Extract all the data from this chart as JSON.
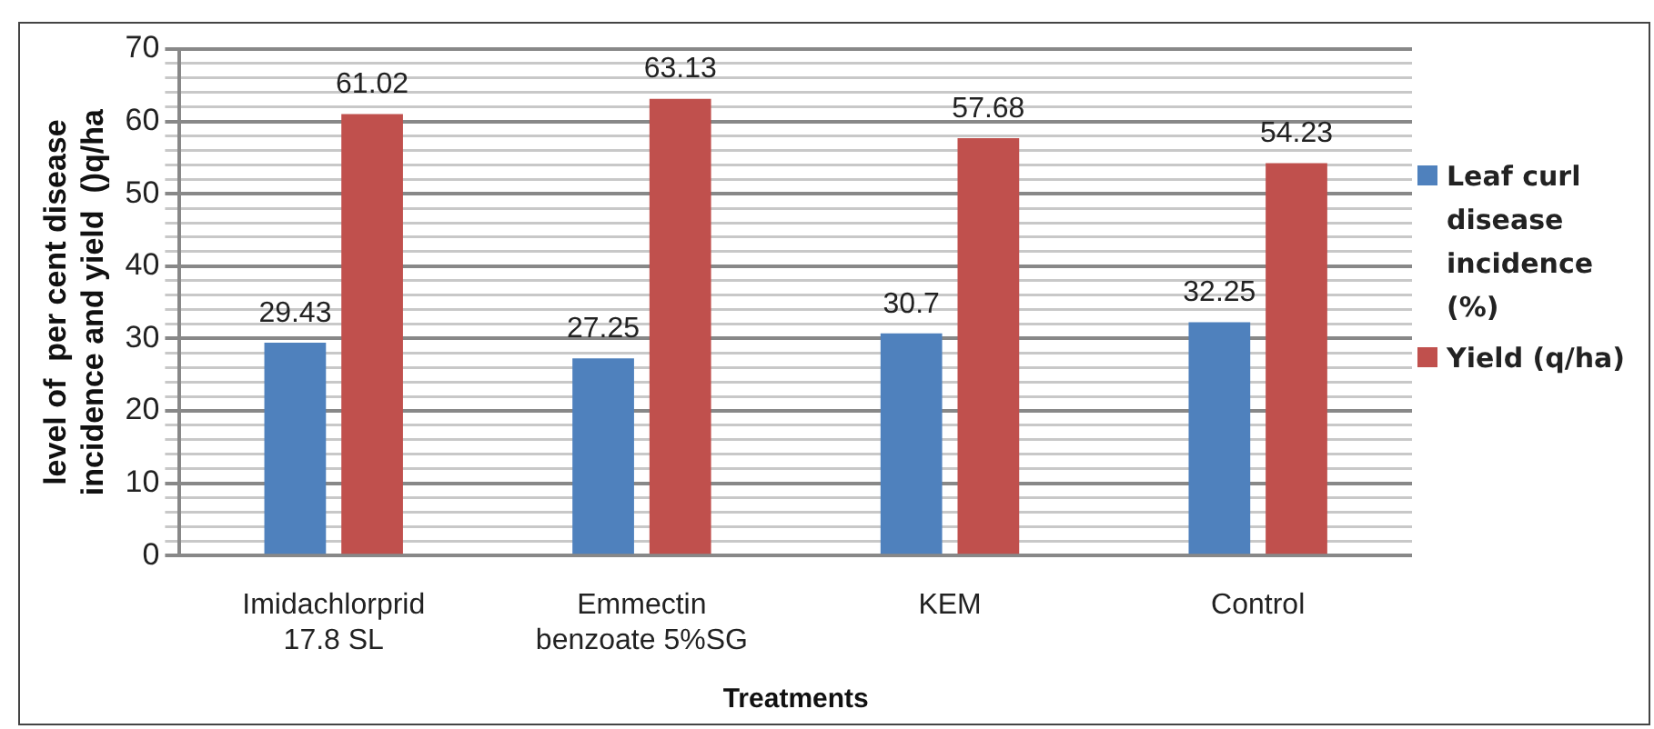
{
  "chart_data": {
    "type": "bar",
    "xlabel": "Treatments",
    "ylabel": "level of  per cent disease\nincidence and yield  ()q/ha",
    "categories": [
      "Imidachlorprid\n17.8 SL",
      "Emmectin\nbenzoate 5%SG",
      "KEM",
      "Control"
    ],
    "series": [
      {
        "name": "Leaf curl disease incidence (%)",
        "color": "#4f81bd",
        "values": [
          29.43,
          27.25,
          30.7,
          32.25
        ]
      },
      {
        "name": "Yield (q/ha)",
        "color": "#c0504d",
        "values": [
          61.02,
          63.13,
          57.68,
          54.23
        ]
      }
    ],
    "ylim": [
      0,
      70
    ],
    "yticks": [
      0,
      {
        "value": 2,
        "label": null
      },
      {
        "value": 4,
        "label": null
      },
      {
        "value": 6,
        "label": null
      },
      {
        "value": 8,
        "label": null
      },
      10,
      {
        "value": 12,
        "label": null
      },
      {
        "value": 14,
        "label": null
      },
      {
        "value": 16,
        "label": null
      },
      {
        "value": 18,
        "label": null
      },
      20,
      {
        "value": 22,
        "label": null
      },
      {
        "value": 24,
        "label": null
      },
      {
        "value": 26,
        "label": null
      },
      {
        "value": 28,
        "label": null
      },
      30,
      {
        "value": 32,
        "label": null
      },
      {
        "value": 34,
        "label": null
      },
      {
        "value": 36,
        "label": null
      },
      {
        "value": 38,
        "label": null
      },
      40,
      {
        "value": 42,
        "label": null
      },
      {
        "value": 44,
        "label": null
      },
      {
        "value": 46,
        "label": null
      },
      {
        "value": 48,
        "label": null
      },
      50,
      {
        "value": 52,
        "label": null
      },
      {
        "value": 54,
        "label": null
      },
      {
        "value": 56,
        "label": null
      },
      {
        "value": 58,
        "label": null
      },
      60,
      {
        "value": 62,
        "label": null
      },
      {
        "value": 64,
        "label": null
      },
      {
        "value": 66,
        "label": null
      },
      {
        "value": 68,
        "label": null
      },
      70
    ],
    "grid": true,
    "legend": "right",
    "data_labels": true
  }
}
